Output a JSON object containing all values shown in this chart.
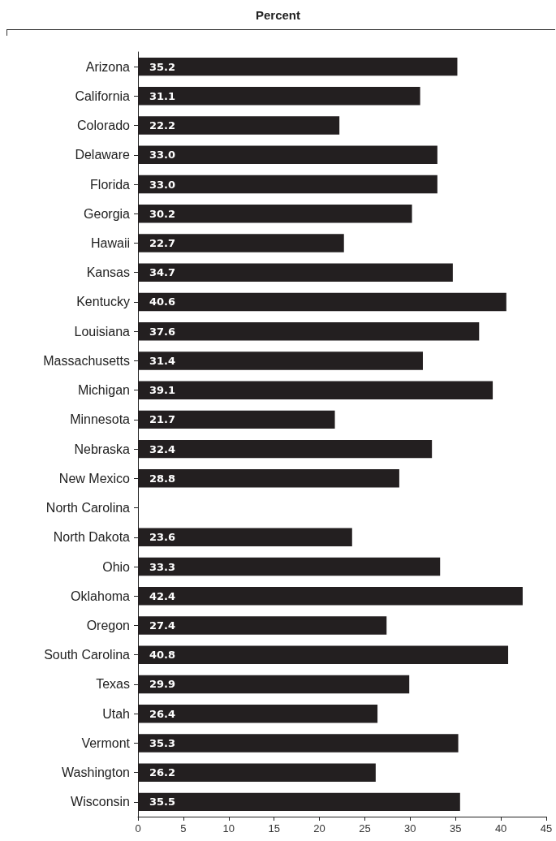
{
  "chart_data": {
    "type": "bar",
    "orientation": "horizontal",
    "xlabel": "Percent",
    "categories": [
      "Arizona",
      "California",
      "Colorado",
      "Delaware",
      "Florida",
      "Georgia",
      "Hawaii",
      "Kansas",
      "Kentucky",
      "Louisiana",
      "Massachusetts",
      "Michigan",
      "Minnesota",
      "Nebraska",
      "New Mexico",
      "North Carolina",
      "North Dakota",
      "Ohio",
      "Oklahoma",
      "Oregon",
      "South Carolina",
      "Texas",
      "Utah",
      "Vermont",
      "Washington",
      "Wisconsin"
    ],
    "values": [
      35.2,
      31.1,
      22.2,
      33.0,
      33.0,
      30.2,
      22.7,
      34.7,
      40.6,
      37.6,
      31.4,
      39.1,
      21.7,
      32.4,
      28.8,
      null,
      23.6,
      33.3,
      42.4,
      27.4,
      40.8,
      29.9,
      26.4,
      35.3,
      26.2,
      35.5
    ],
    "value_labels": [
      "35.2",
      "31.1",
      "22.2",
      "33.0",
      "33.0",
      "30.2",
      "22.7",
      "34.7",
      "40.6",
      "37.6",
      "31.4",
      "39.1",
      "21.7",
      "32.4",
      "28.8",
      null,
      "23.6",
      "33.3",
      "42.4",
      "27.4",
      "40.8",
      "29.9",
      "26.4",
      "35.3",
      "26.2",
      "35.5"
    ],
    "color": "#231f20",
    "xlim": [
      0,
      45
    ],
    "xticks": [
      0,
      5,
      10,
      15,
      20,
      25,
      30,
      35,
      40,
      45
    ]
  }
}
